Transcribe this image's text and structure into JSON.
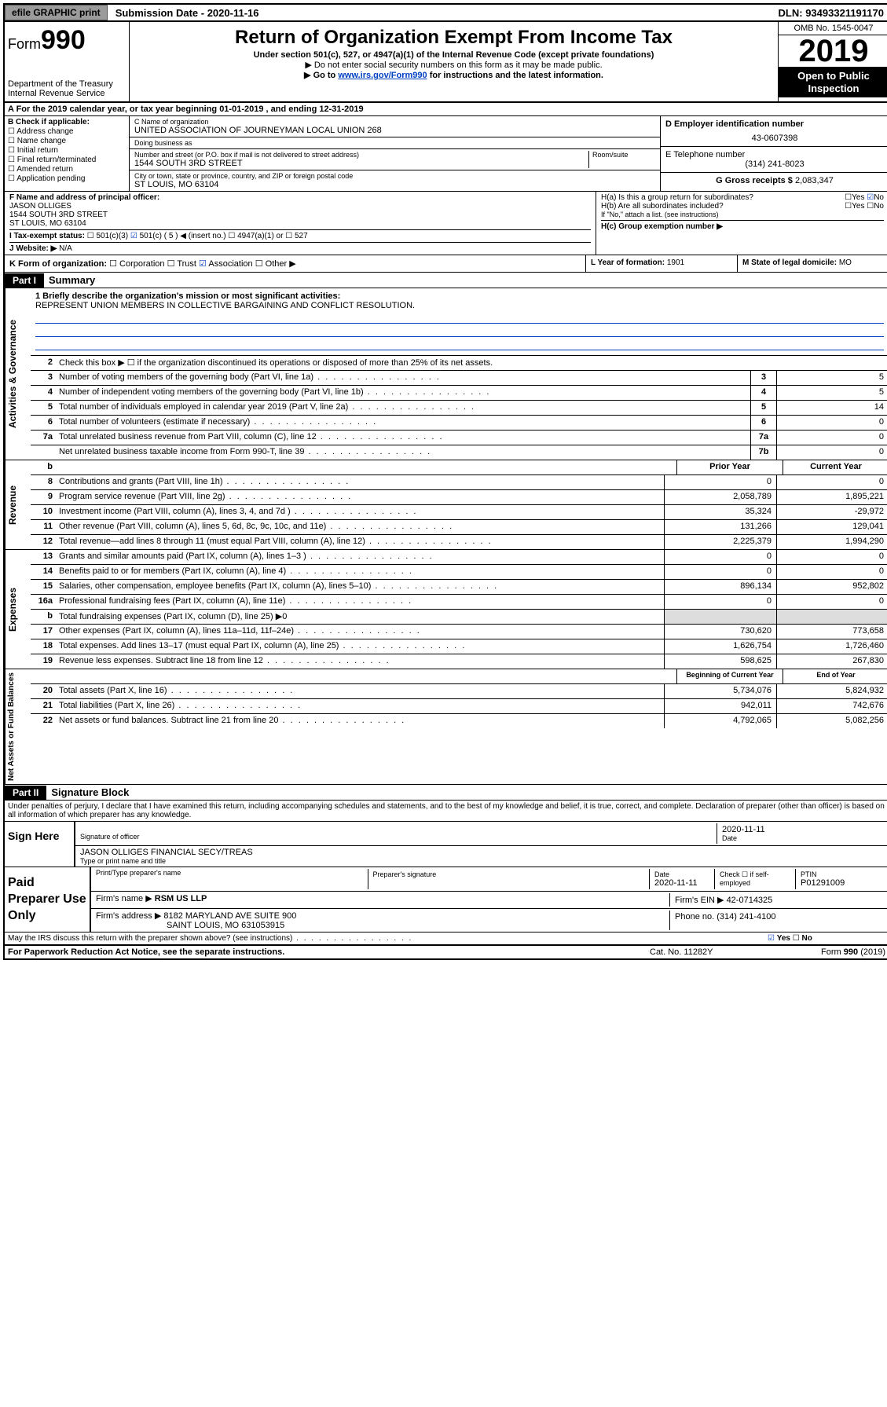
{
  "topbar": {
    "efile": "efile GRAPHIC print",
    "sub_lbl": "Submission Date - 2020-11-16",
    "dln_lbl": "DLN: 93493321191170"
  },
  "header": {
    "form_lbl": "Form",
    "form_num": "990",
    "dept": "Department of the Treasury",
    "irs": "Internal Revenue Service",
    "title": "Return of Organization Exempt From Income Tax",
    "sub1": "Under section 501(c), 527, or 4947(a)(1) of the Internal Revenue Code (except private foundations)",
    "sub2": "▶ Do not enter social security numbers on this form as it may be made public.",
    "sub3_pre": "▶ Go to ",
    "sub3_link": "www.irs.gov/Form990",
    "sub3_post": " for instructions and the latest information.",
    "omb": "OMB No. 1545-0047",
    "year": "2019",
    "open": "Open to Public Inspection"
  },
  "rowA": "A For the 2019 calendar year, or tax year beginning 01-01-2019    , and ending 12-31-2019",
  "B": {
    "hdr": "B Check if applicable:",
    "items": [
      "Address change",
      "Name change",
      "Initial return",
      "Final return/terminated",
      "Amended return",
      "Application pending"
    ]
  },
  "C": {
    "name_lbl": "C Name of organization",
    "name": "UNITED ASSOCIATION OF JOURNEYMAN LOCAL UNION 268",
    "dba_lbl": "Doing business as",
    "street_lbl": "Number and street (or P.O. box if mail is not delivered to street address)",
    "room_lbl": "Room/suite",
    "street": "1544 SOUTH 3RD STREET",
    "city_lbl": "City or town, state or province, country, and ZIP or foreign postal code",
    "city": "ST LOUIS, MO  63104"
  },
  "D": {
    "lbl": "D Employer identification number",
    "val": "43-0607398"
  },
  "E": {
    "lbl": "E Telephone number",
    "val": "(314) 241-8023"
  },
  "G": {
    "lbl": "G Gross receipts $",
    "val": "2,083,347"
  },
  "F": {
    "lbl": "F  Name and address of principal officer:",
    "name": "JASON OLLIGES",
    "addr1": "1544 SOUTH 3RD STREET",
    "addr2": "ST LOUIS, MO  63104"
  },
  "H": {
    "a_lbl": "H(a)  Is this a group return for subordinates?",
    "a_yes": "Yes",
    "a_no": "No",
    "b_lbl": "H(b)  Are all subordinates included?",
    "b_note": "If \"No,\" attach a list. (see instructions)",
    "c_lbl": "H(c)  Group exemption number ▶"
  },
  "I": {
    "lbl": "I   Tax-exempt status:",
    "opts": [
      "501(c)(3)",
      "501(c) ( 5 ) ◀ (insert no.)",
      "4947(a)(1) or",
      "527"
    ]
  },
  "J": {
    "lbl": "J   Website: ▶",
    "val": "N/A"
  },
  "K": {
    "lbl": "K Form of organization:",
    "opts": [
      "Corporation",
      "Trust",
      "Association",
      "Other ▶"
    ]
  },
  "L": {
    "lbl": "L Year of formation:",
    "val": "1901"
  },
  "M": {
    "lbl": "M State of legal domicile:",
    "val": "MO"
  },
  "partI": {
    "hdr": "Part I",
    "title": "Summary"
  },
  "governance": {
    "vtab": "Activities & Governance",
    "l1_lbl": "1  Briefly describe the organization's mission or most significant activities:",
    "l1_val": "REPRESENT UNION MEMBERS IN COLLECTIVE BARGAINING AND CONFLICT RESOLUTION.",
    "l2": "Check this box ▶ ☐  if the organization discontinued its operations or disposed of more than 25% of its net assets.",
    "rows": [
      {
        "n": "3",
        "d": "Number of voting members of the governing body (Part VI, line 1a)",
        "b": "3",
        "v": "5"
      },
      {
        "n": "4",
        "d": "Number of independent voting members of the governing body (Part VI, line 1b)",
        "b": "4",
        "v": "5"
      },
      {
        "n": "5",
        "d": "Total number of individuals employed in calendar year 2019 (Part V, line 2a)",
        "b": "5",
        "v": "14"
      },
      {
        "n": "6",
        "d": "Total number of volunteers (estimate if necessary)",
        "b": "6",
        "v": "0"
      },
      {
        "n": "7a",
        "d": "Total unrelated business revenue from Part VIII, column (C), line 12",
        "b": "7a",
        "v": "0"
      },
      {
        "n": "",
        "d": "Net unrelated business taxable income from Form 990-T, line 39",
        "b": "7b",
        "v": "0"
      }
    ]
  },
  "revenue": {
    "vtab": "Revenue",
    "hdr_prior": "Prior Year",
    "hdr_curr": "Current Year",
    "rows": [
      {
        "n": "8",
        "d": "Contributions and grants (Part VIII, line 1h)",
        "p": "0",
        "c": "0"
      },
      {
        "n": "9",
        "d": "Program service revenue (Part VIII, line 2g)",
        "p": "2,058,789",
        "c": "1,895,221"
      },
      {
        "n": "10",
        "d": "Investment income (Part VIII, column (A), lines 3, 4, and 7d )",
        "p": "35,324",
        "c": "-29,972"
      },
      {
        "n": "11",
        "d": "Other revenue (Part VIII, column (A), lines 5, 6d, 8c, 9c, 10c, and 11e)",
        "p": "131,266",
        "c": "129,041"
      },
      {
        "n": "12",
        "d": "Total revenue—add lines 8 through 11 (must equal Part VIII, column (A), line 12)",
        "p": "2,225,379",
        "c": "1,994,290"
      }
    ]
  },
  "expenses": {
    "vtab": "Expenses",
    "rows": [
      {
        "n": "13",
        "d": "Grants and similar amounts paid (Part IX, column (A), lines 1–3 )",
        "p": "0",
        "c": "0"
      },
      {
        "n": "14",
        "d": "Benefits paid to or for members (Part IX, column (A), line 4)",
        "p": "0",
        "c": "0"
      },
      {
        "n": "15",
        "d": "Salaries, other compensation, employee benefits (Part IX, column (A), lines 5–10)",
        "p": "896,134",
        "c": "952,802"
      },
      {
        "n": "16a",
        "d": "Professional fundraising fees (Part IX, column (A), line 11e)",
        "p": "0",
        "c": "0"
      },
      {
        "n": "b",
        "d": "Total fundraising expenses (Part IX, column (D), line 25) ▶0",
        "p": "",
        "c": "",
        "gray": true
      },
      {
        "n": "17",
        "d": "Other expenses (Part IX, column (A), lines 11a–11d, 11f–24e)",
        "p": "730,620",
        "c": "773,658"
      },
      {
        "n": "18",
        "d": "Total expenses. Add lines 13–17 (must equal Part IX, column (A), line 25)",
        "p": "1,626,754",
        "c": "1,726,460"
      },
      {
        "n": "19",
        "d": "Revenue less expenses. Subtract line 18 from line 12",
        "p": "598,625",
        "c": "267,830"
      }
    ]
  },
  "netassets": {
    "vtab": "Net Assets or Fund Balances",
    "hdr_prior": "Beginning of Current Year",
    "hdr_curr": "End of Year",
    "rows": [
      {
        "n": "20",
        "d": "Total assets (Part X, line 16)",
        "p": "5,734,076",
        "c": "5,824,932"
      },
      {
        "n": "21",
        "d": "Total liabilities (Part X, line 26)",
        "p": "942,011",
        "c": "742,676"
      },
      {
        "n": "22",
        "d": "Net assets or fund balances. Subtract line 21 from line 20",
        "p": "4,792,065",
        "c": "5,082,256"
      }
    ]
  },
  "partII": {
    "hdr": "Part II",
    "title": "Signature Block"
  },
  "perjury": "Under penalties of perjury, I declare that I have examined this return, including accompanying schedules and statements, and to the best of my knowledge and belief, it is true, correct, and complete. Declaration of preparer (other than officer) is based on all information of which preparer has any knowledge.",
  "sign": {
    "here": "Sign Here",
    "sig_lbl": "Signature of officer",
    "date": "2020-11-11",
    "date_lbl": "Date",
    "name": "JASON OLLIGES FINANCIAL SECY/TREAS",
    "name_lbl": "Type or print name and title"
  },
  "paid": {
    "hdr": "Paid Preparer Use Only",
    "c1": "Print/Type preparer's name",
    "c2": "Preparer's signature",
    "c3": "Date",
    "c3v": "2020-11-11",
    "c4": "Check ☐ if self-employed",
    "c5": "PTIN",
    "c5v": "P01291009",
    "firm_lbl": "Firm's name    ▶",
    "firm": "RSM US LLP",
    "ein_lbl": "Firm's EIN ▶",
    "ein": "42-0714325",
    "addr_lbl": "Firm's address ▶",
    "addr1": "8182 MARYLAND AVE SUITE 900",
    "addr2": "SAINT LOUIS, MO  631053915",
    "phone_lbl": "Phone no.",
    "phone": "(314) 241-4100"
  },
  "discuss": {
    "q": "May the IRS discuss this return with the preparer shown above? (see instructions)",
    "yes": "Yes",
    "no": "No"
  },
  "footer": {
    "l": "For Paperwork Reduction Act Notice, see the separate instructions.",
    "m": "Cat. No. 11282Y",
    "r": "Form 990 (2019)"
  }
}
